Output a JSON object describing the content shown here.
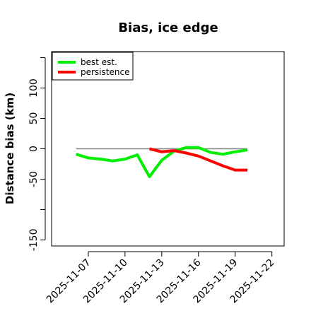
{
  "chart_data": {
    "type": "line",
    "title": "Bias, ice edge",
    "xlabel": "",
    "ylabel": "Distance bias (km)",
    "xlim": [
      "2025-11-04",
      "2025-11-23"
    ],
    "ylim": [
      -160,
      160
    ],
    "yticks": [
      -150,
      -50,
      0,
      50,
      100
    ],
    "ytick_labels": [
      "-150",
      "-50",
      "0",
      "50",
      "100"
    ],
    "yticks_unlabeled": [
      -100,
      150
    ],
    "xticks": [
      "2025-11-07",
      "2025-11-10",
      "2025-11-13",
      "2025-11-16",
      "2025-11-19",
      "2025-11-22"
    ],
    "xtick_labels": [
      "2025-11-07",
      "2025-11-10",
      "2025-11-13",
      "2025-11-16",
      "2025-11-19",
      "2025-11-22"
    ],
    "grid": false,
    "legend_position": "top-left",
    "reference_line": {
      "y": 0,
      "x": [
        "2025-11-06",
        "2025-11-20"
      ],
      "color": "#808080"
    },
    "series": [
      {
        "name": "best est.",
        "color": "#00ee00",
        "x": [
          "2025-11-06",
          "2025-11-07",
          "2025-11-08",
          "2025-11-09",
          "2025-11-10",
          "2025-11-11",
          "2025-11-12",
          "2025-11-13",
          "2025-11-14",
          "2025-11-15",
          "2025-11-16",
          "2025-11-17",
          "2025-11-18",
          "2025-11-19",
          "2025-11-20"
        ],
        "values": [
          -9,
          -15,
          -17,
          -20,
          -17,
          -10,
          -46,
          -19,
          -4,
          2,
          2,
          -6,
          -9,
          -5,
          -2
        ]
      },
      {
        "name": "persistence",
        "color": "#ff0000",
        "x": [
          "2025-11-12",
          "2025-11-13",
          "2025-11-14",
          "2025-11-15",
          "2025-11-16",
          "2025-11-17",
          "2025-11-18",
          "2025-11-19",
          "2025-11-20"
        ],
        "values": [
          0,
          -5,
          -3,
          -7,
          -12,
          -20,
          -28,
          -35,
          -35
        ]
      }
    ]
  }
}
